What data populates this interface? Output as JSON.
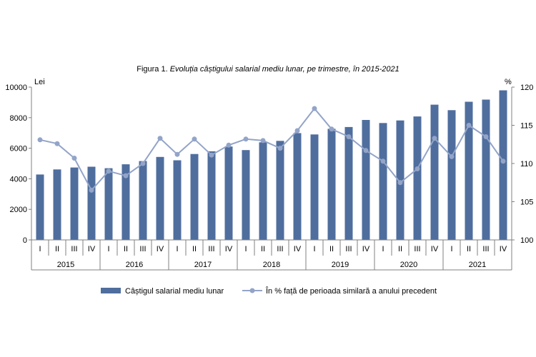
{
  "chart_data": {
    "type": "bar+line",
    "title_prefix": "Figura 1. ",
    "title_italic": "Evoluția câștigului salarial mediu lunar, pe trimestre, în 2015-2021",
    "y_left_label": "Lei",
    "y_right_label": "%",
    "y_left_lim": [
      0,
      10000
    ],
    "y_left_ticks": [
      0,
      2000,
      4000,
      6000,
      8000,
      10000
    ],
    "y_right_lim": [
      100,
      120
    ],
    "y_right_ticks": [
      100,
      105,
      110,
      115,
      120
    ],
    "years": [
      "2015",
      "2016",
      "2017",
      "2018",
      "2019",
      "2020",
      "2021"
    ],
    "quarters": [
      "I",
      "II",
      "III",
      "IV"
    ],
    "series": [
      {
        "name": "Câștigul salarial mediu lunar",
        "type": "bar",
        "axis": "left",
        "color": "#4f6e9e",
        "values": [
          4280,
          4610,
          4740,
          4790,
          4690,
          4950,
          5160,
          5430,
          5210,
          5620,
          5800,
          6110,
          5880,
          6390,
          6480,
          6990,
          6900,
          7270,
          7390,
          7850,
          7650,
          7820,
          8080,
          8850,
          8490,
          9040,
          9180,
          9790
        ]
      },
      {
        "name": "În % față de perioada similară a anului precedent",
        "type": "line",
        "axis": "right",
        "color": "#93a4c8",
        "values": [
          113.1,
          112.6,
          110.7,
          106.5,
          109.0,
          108.4,
          110.0,
          113.3,
          111.2,
          113.2,
          111.1,
          112.4,
          113.2,
          113.0,
          112.0,
          114.3,
          117.2,
          114.5,
          113.5,
          111.7,
          110.3,
          107.5,
          109.3,
          113.3,
          110.9,
          115.0,
          113.5,
          110.3
        ]
      }
    ],
    "legend_position": "bottom",
    "grid": false
  }
}
